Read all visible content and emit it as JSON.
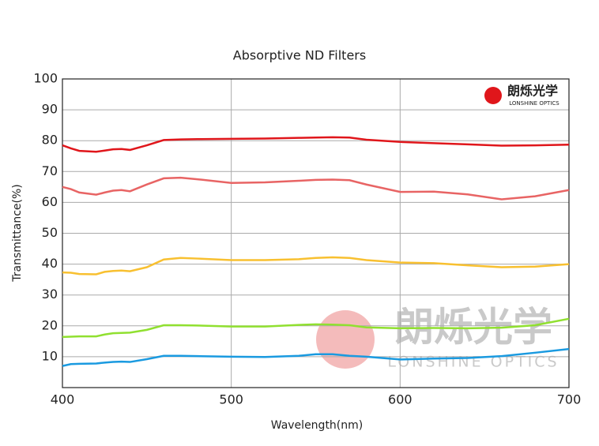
{
  "chart_data": {
    "type": "line",
    "title": "Absorptive ND Filters",
    "x_label": "Wavelength(nm)",
    "y_label": "Transmittance(%)",
    "logo": {
      "name": "朗烁光学",
      "subtitle": "LONSHINE OPTICS"
    },
    "x": [
      400,
      405,
      410,
      420,
      425,
      430,
      435,
      440,
      450,
      460,
      470,
      480,
      500,
      520,
      540,
      550,
      560,
      570,
      580,
      600,
      620,
      640,
      660,
      680,
      700
    ],
    "series": [
      {
        "color": "#e0161b",
        "values": [
          78.5,
          77.5,
          76.7,
          76.4,
          76.8,
          77.2,
          77.3,
          77.0,
          78.5,
          80.2,
          80.4,
          80.5,
          80.6,
          80.7,
          80.9,
          81.0,
          81.1,
          81.0,
          80.3,
          79.6,
          79.2,
          78.8,
          78.4,
          78.5,
          78.7
        ]
      },
      {
        "color": "#e86464",
        "values": [
          65,
          64.3,
          63.2,
          62.5,
          63.2,
          63.8,
          64,
          63.6,
          65.8,
          67.8,
          68,
          67.5,
          66.3,
          66.5,
          67,
          67.3,
          67.4,
          67.2,
          65.8,
          63.4,
          63.5,
          62.6,
          61,
          62,
          64
        ]
      },
      {
        "color": "#f8c030",
        "values": [
          37.3,
          37.2,
          36.8,
          36.7,
          37.5,
          37.8,
          37.9,
          37.7,
          39,
          41.5,
          42,
          41.8,
          41.3,
          41.3,
          41.6,
          42,
          42.2,
          42,
          41.3,
          40.5,
          40.3,
          39.6,
          39,
          39.2,
          40
        ]
      },
      {
        "color": "#90e030",
        "values": [
          16.4,
          16.5,
          16.6,
          16.6,
          17.2,
          17.6,
          17.7,
          17.8,
          18.7,
          20.2,
          20.2,
          20.1,
          19.8,
          19.8,
          20.3,
          20.5,
          20.4,
          20.2,
          19.5,
          19.2,
          19.3,
          19.2,
          19.4,
          20.2,
          22.3
        ]
      },
      {
        "color": "#1a9ae0",
        "values": [
          7,
          7.6,
          7.7,
          7.8,
          8.1,
          8.3,
          8.4,
          8.3,
          9.2,
          10.3,
          10.3,
          10.2,
          10,
          9.9,
          10.3,
          10.8,
          10.8,
          10.3,
          10,
          9.1,
          9.4,
          9.6,
          10.2,
          11.3,
          12.5
        ]
      }
    ],
    "xlim": [
      400,
      700
    ],
    "xticks": [
      400,
      500,
      600,
      700
    ],
    "ylim": [
      0,
      100
    ],
    "yticks": [
      10,
      20,
      30,
      40,
      50,
      60,
      70,
      80,
      90,
      100
    ],
    "grid": true
  }
}
